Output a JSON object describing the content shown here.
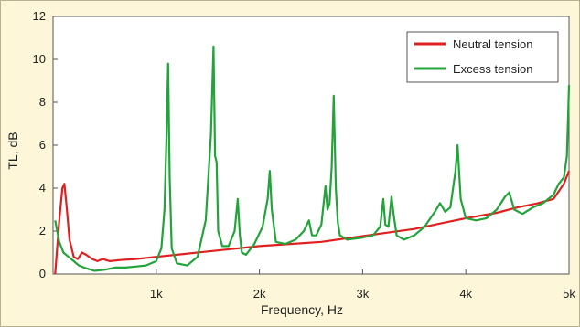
{
  "chart_data": {
    "type": "line",
    "xlabel": "Frequency, Hz",
    "ylabel": "TL, dB",
    "xlim": [
      0,
      5000
    ],
    "ylim": [
      0,
      12
    ],
    "x_ticks": [
      1000,
      2000,
      3000,
      4000,
      5000
    ],
    "x_tick_labels": [
      "1k",
      "2k",
      "3k",
      "4k",
      "5k"
    ],
    "y_ticks": [
      0,
      2,
      4,
      6,
      8,
      10,
      12
    ],
    "y_tick_labels": [
      "0",
      "2",
      "4",
      "6",
      "8",
      "10",
      "12"
    ],
    "grid": false,
    "legend_position": "top-right",
    "series": [
      {
        "name": "Neutral tension",
        "color": "#e02020",
        "x": [
          20,
          60,
          90,
          110,
          130,
          160,
          200,
          240,
          280,
          320,
          380,
          430,
          480,
          550,
          650,
          800,
          1000,
          1200,
          1500,
          1800,
          2000,
          2300,
          2600,
          2900,
          3200,
          3500,
          3800,
          4000,
          4300,
          4500,
          4700,
          4850,
          4950,
          5000
        ],
        "y": [
          0.0,
          2.5,
          4.0,
          4.2,
          3.2,
          1.6,
          0.8,
          0.7,
          1.0,
          0.9,
          0.7,
          0.6,
          0.7,
          0.6,
          0.65,
          0.7,
          0.8,
          0.9,
          1.05,
          1.2,
          1.3,
          1.4,
          1.5,
          1.7,
          1.9,
          2.1,
          2.4,
          2.6,
          2.85,
          3.1,
          3.3,
          3.5,
          4.2,
          4.8
        ]
      },
      {
        "name": "Excess tension",
        "color": "#22a43a",
        "x": [
          20,
          60,
          100,
          150,
          200,
          250,
          300,
          400,
          500,
          600,
          700,
          800,
          900,
          1000,
          1050,
          1080,
          1100,
          1115,
          1130,
          1150,
          1200,
          1300,
          1400,
          1480,
          1530,
          1555,
          1570,
          1585,
          1600,
          1640,
          1700,
          1760,
          1790,
          1810,
          1830,
          1870,
          1950,
          2030,
          2080,
          2100,
          2120,
          2160,
          2250,
          2350,
          2430,
          2480,
          2510,
          2550,
          2600,
          2640,
          2660,
          2680,
          2700,
          2720,
          2740,
          2760,
          2780,
          2850,
          3000,
          3100,
          3170,
          3200,
          3220,
          3250,
          3280,
          3300,
          3330,
          3400,
          3500,
          3600,
          3700,
          3750,
          3800,
          3850,
          3900,
          3920,
          3950,
          4000,
          4100,
          4200,
          4300,
          4380,
          4420,
          4470,
          4550,
          4650,
          4750,
          4850,
          4900,
          4950,
          4980,
          5000
        ],
        "y": [
          2.5,
          1.5,
          1.0,
          0.8,
          0.6,
          0.4,
          0.3,
          0.15,
          0.2,
          0.3,
          0.3,
          0.35,
          0.4,
          0.6,
          1.2,
          3.0,
          6.5,
          9.8,
          4.5,
          1.2,
          0.5,
          0.4,
          0.8,
          2.5,
          6.5,
          10.6,
          5.5,
          5.2,
          2.0,
          1.3,
          1.3,
          2.0,
          3.5,
          1.8,
          1.0,
          0.9,
          1.4,
          2.2,
          3.5,
          4.8,
          3.0,
          1.5,
          1.4,
          1.6,
          2.0,
          2.5,
          1.8,
          1.8,
          2.3,
          4.1,
          3.0,
          3.3,
          5.0,
          8.3,
          4.0,
          2.4,
          1.8,
          1.6,
          1.7,
          1.8,
          2.2,
          3.5,
          2.3,
          2.2,
          3.6,
          2.8,
          1.8,
          1.6,
          1.8,
          2.2,
          2.9,
          3.3,
          2.9,
          3.1,
          4.8,
          6.0,
          3.5,
          2.6,
          2.5,
          2.6,
          3.0,
          3.6,
          3.8,
          3.0,
          2.8,
          3.1,
          3.3,
          3.7,
          4.2,
          4.5,
          5.5,
          8.8
        ]
      }
    ]
  }
}
